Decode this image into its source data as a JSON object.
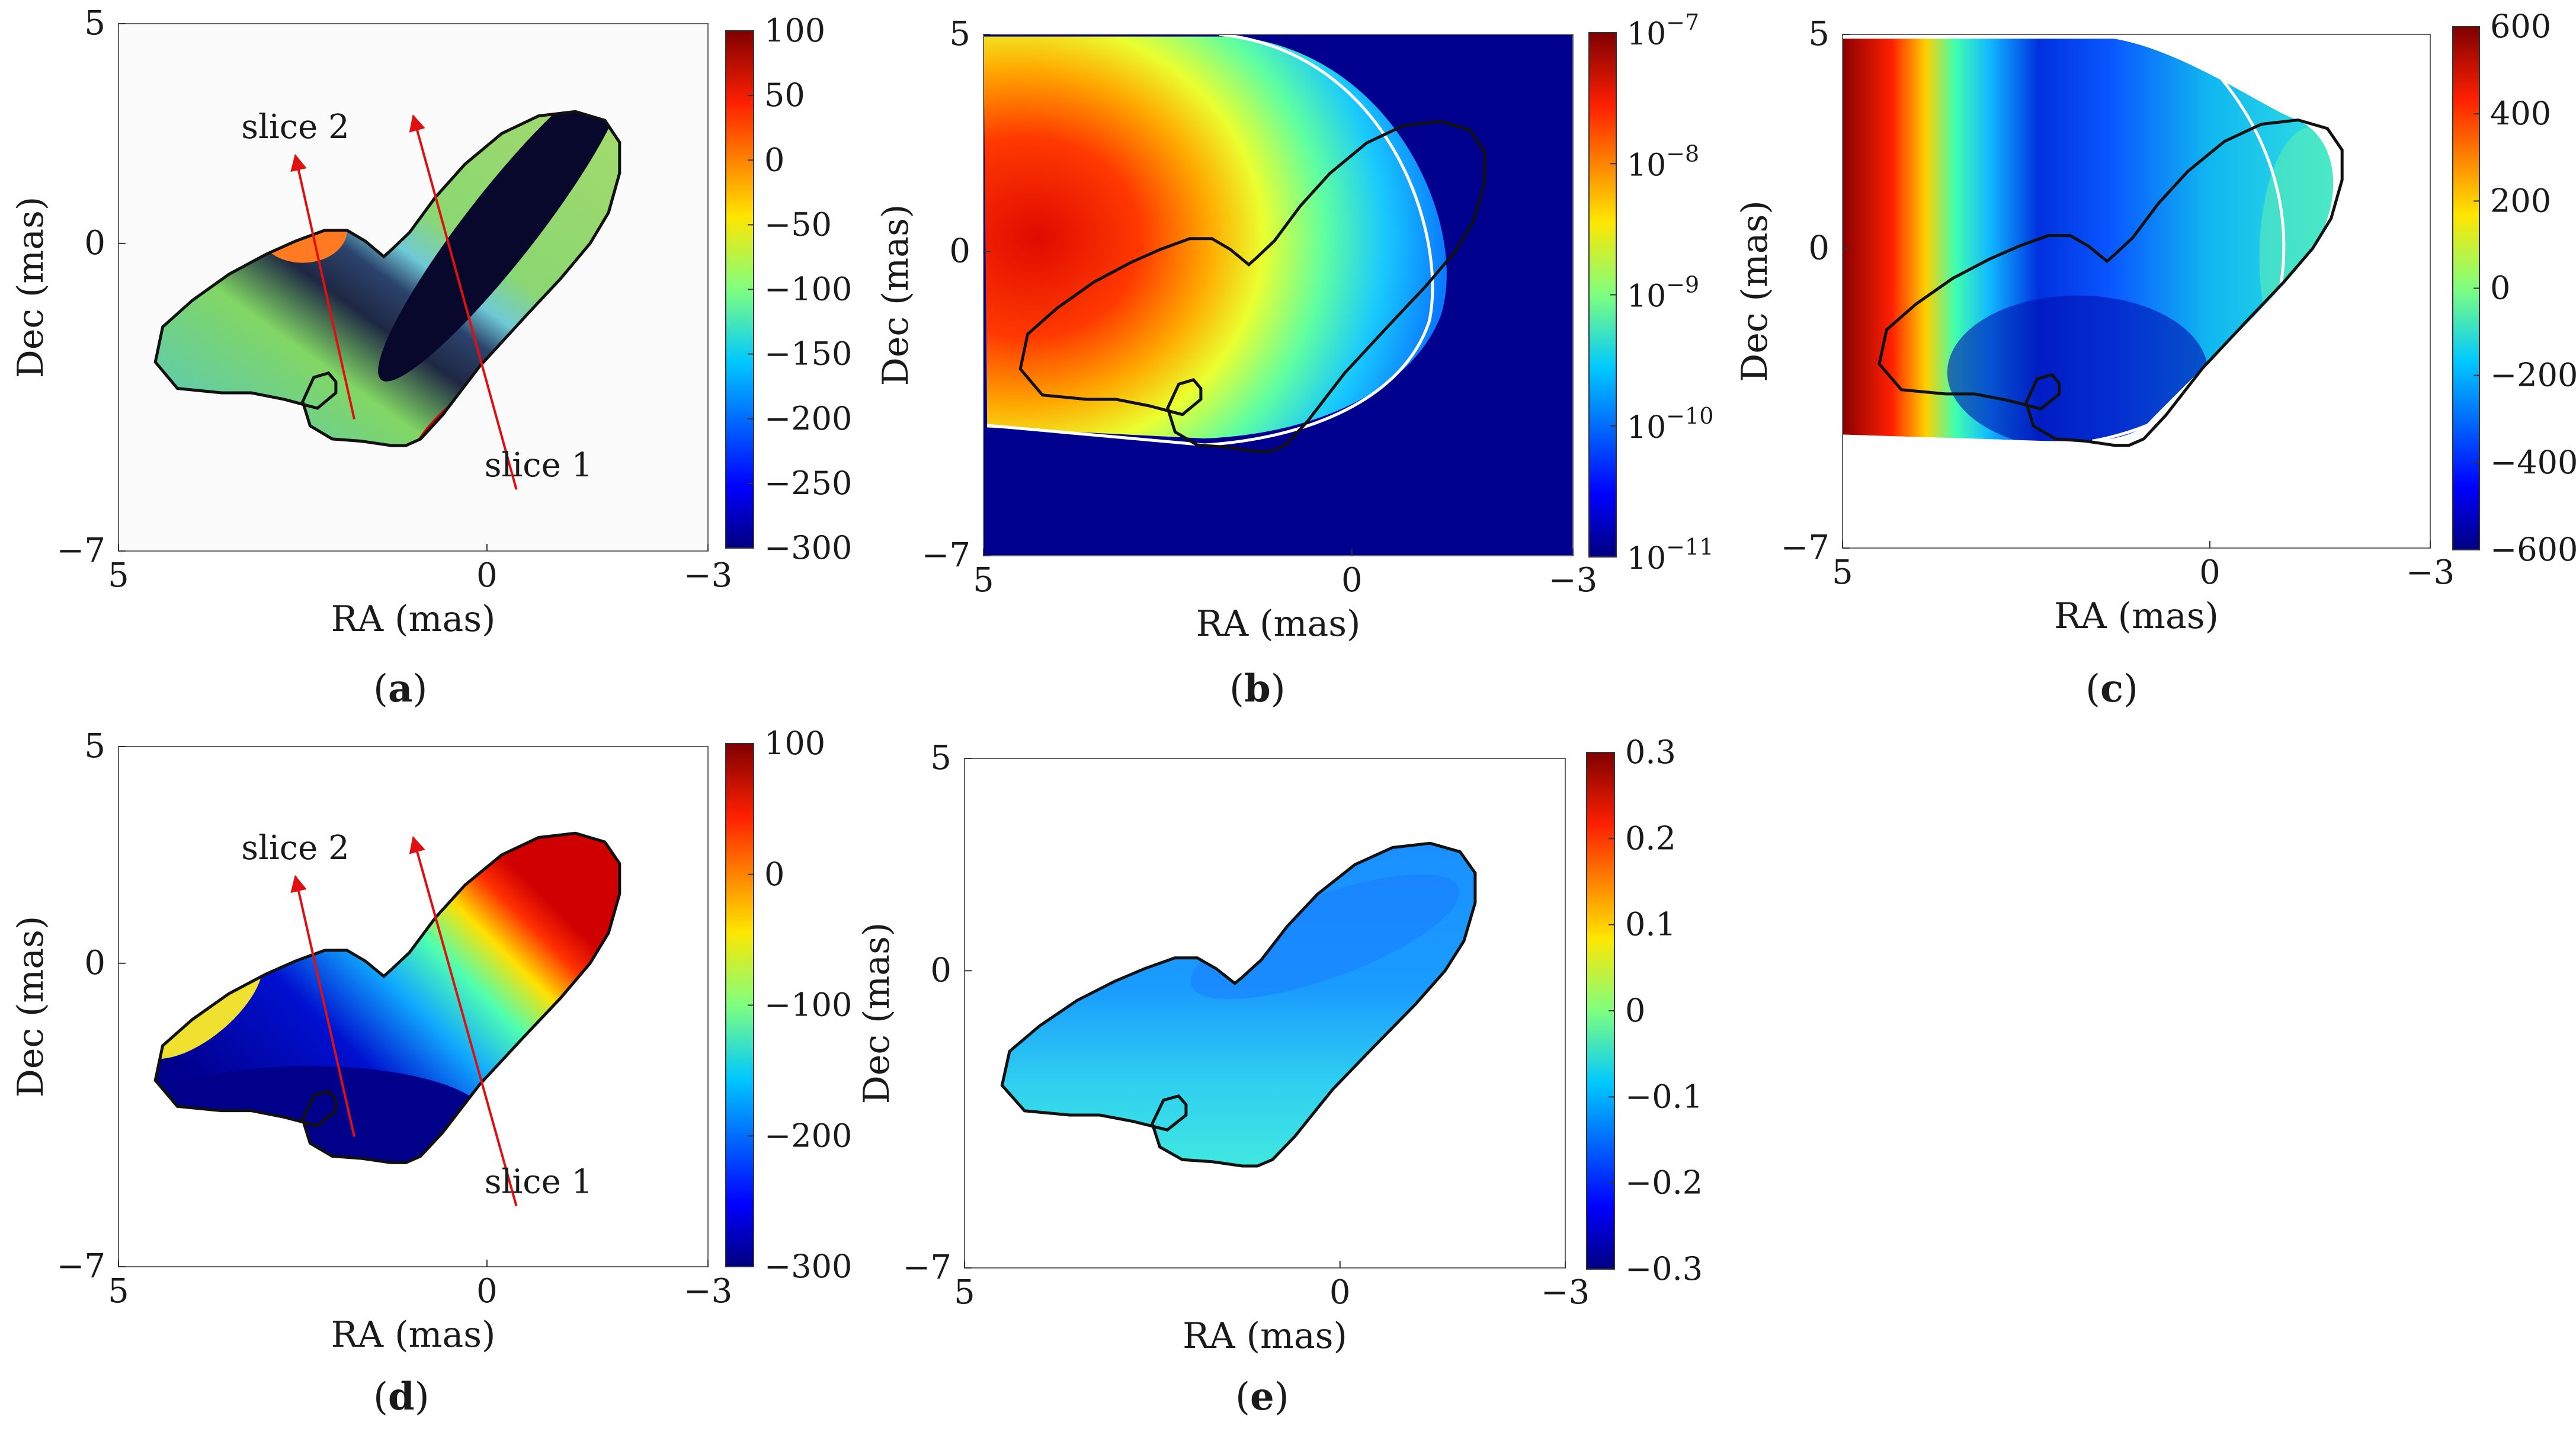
{
  "figure": {
    "caption_open": "(",
    "caption_close": ")"
  },
  "chart_data": [
    {
      "id": "a",
      "type": "heatmap",
      "caption": "a",
      "xlabel": "RA (mas)",
      "ylabel": "Dec (mas)",
      "xlim": [
        5,
        -3
      ],
      "ylim": [
        -7,
        5
      ],
      "xticks": [
        {
          "value": 5,
          "label": "5"
        },
        {
          "value": 0,
          "label": "0"
        },
        {
          "value": -3,
          "label": "−3"
        }
      ],
      "yticks": [
        {
          "value": 5,
          "label": "5"
        },
        {
          "value": 0,
          "label": "0"
        },
        {
          "value": -7,
          "label": "−7"
        }
      ],
      "colorbar": {
        "scale": "linear",
        "range": [
          -300,
          100
        ],
        "ticks": [
          {
            "value": 100,
            "label": "100"
          },
          {
            "value": 50,
            "label": "50"
          },
          {
            "value": 0,
            "label": "0"
          },
          {
            "value": -50,
            "label": "−50"
          },
          {
            "value": -100,
            "label": "−100"
          },
          {
            "value": -150,
            "label": "−150"
          },
          {
            "value": -200,
            "label": "−200"
          },
          {
            "value": -250,
            "label": "−250"
          },
          {
            "value": -300,
            "label": "−300"
          }
        ]
      },
      "annotations": [
        {
          "text": "slice 1",
          "from": [
            -0.4,
            -5.6
          ],
          "to": [
            1.0,
            2.9
          ]
        },
        {
          "text": "slice 2",
          "from": [
            1.8,
            -4.0
          ],
          "to": [
            2.6,
            2.0
          ]
        }
      ]
    },
    {
      "id": "b",
      "type": "heatmap",
      "caption": "b",
      "xlabel": "RA (mas)",
      "ylabel": "Dec (mas)",
      "xlim": [
        5,
        -3
      ],
      "ylim": [
        -7,
        5
      ],
      "xticks": [
        {
          "value": 5,
          "label": "5"
        },
        {
          "value": 0,
          "label": "0"
        },
        {
          "value": -3,
          "label": "−3"
        }
      ],
      "yticks": [
        {
          "value": 5,
          "label": "5"
        },
        {
          "value": 0,
          "label": "0"
        },
        {
          "value": -7,
          "label": "−7"
        }
      ],
      "colorbar": {
        "scale": "log",
        "range": [
          -11,
          -7
        ],
        "ticks": [
          {
            "value": -7,
            "base": "10",
            "exp": "−7"
          },
          {
            "value": -8,
            "base": "10",
            "exp": "−8"
          },
          {
            "value": -9,
            "base": "10",
            "exp": "−9"
          },
          {
            "value": -10,
            "base": "10",
            "exp": "−10"
          },
          {
            "value": -11,
            "base": "10",
            "exp": "−11"
          }
        ]
      }
    },
    {
      "id": "c",
      "type": "heatmap",
      "caption": "c",
      "xlabel": "RA (mas)",
      "ylabel": "Dec (mas)",
      "xlim": [
        5,
        -3
      ],
      "ylim": [
        -7,
        5
      ],
      "xticks": [
        {
          "value": 5,
          "label": "5"
        },
        {
          "value": 0,
          "label": "0"
        },
        {
          "value": -3,
          "label": "−3"
        }
      ],
      "yticks": [
        {
          "value": 5,
          "label": "5"
        },
        {
          "value": 0,
          "label": "0"
        },
        {
          "value": -7,
          "label": "−7"
        }
      ],
      "colorbar": {
        "scale": "linear",
        "range": [
          -600,
          600
        ],
        "ticks": [
          {
            "value": 600,
            "label": "600"
          },
          {
            "value": 400,
            "label": "400"
          },
          {
            "value": 200,
            "label": "200"
          },
          {
            "value": 0,
            "label": "0"
          },
          {
            "value": -200,
            "label": "−200"
          },
          {
            "value": -400,
            "label": "−400"
          },
          {
            "value": -600,
            "label": "−600"
          }
        ]
      }
    },
    {
      "id": "d",
      "type": "heatmap",
      "caption": "d",
      "xlabel": "RA (mas)",
      "ylabel": "Dec (mas)",
      "xlim": [
        5,
        -3
      ],
      "ylim": [
        -7,
        5
      ],
      "xticks": [
        {
          "value": 5,
          "label": "5"
        },
        {
          "value": 0,
          "label": "0"
        },
        {
          "value": -3,
          "label": "−3"
        }
      ],
      "yticks": [
        {
          "value": 5,
          "label": "5"
        },
        {
          "value": 0,
          "label": "0"
        },
        {
          "value": -7,
          "label": "−7"
        }
      ],
      "colorbar": {
        "scale": "linear",
        "range": [
          -300,
          100
        ],
        "ticks": [
          {
            "value": 100,
            "label": "100"
          },
          {
            "value": 0,
            "label": "0"
          },
          {
            "value": -100,
            "label": "−100"
          },
          {
            "value": -200,
            "label": "−200"
          },
          {
            "value": -300,
            "label": "−300"
          }
        ]
      },
      "annotations": [
        {
          "text": "slice 1",
          "from": [
            -0.4,
            -5.6
          ],
          "to": [
            1.0,
            2.9
          ]
        },
        {
          "text": "slice 2",
          "from": [
            1.8,
            -4.0
          ],
          "to": [
            2.6,
            2.0
          ]
        }
      ]
    },
    {
      "id": "e",
      "type": "heatmap",
      "caption": "e",
      "xlabel": "RA (mas)",
      "ylabel": "Dec (mas)",
      "xlim": [
        5,
        -3
      ],
      "ylim": [
        -7,
        5
      ],
      "xticks": [
        {
          "value": 5,
          "label": "5"
        },
        {
          "value": 0,
          "label": "0"
        },
        {
          "value": -3,
          "label": "−3"
        }
      ],
      "yticks": [
        {
          "value": 5,
          "label": "5"
        },
        {
          "value": 0,
          "label": "0"
        },
        {
          "value": -7,
          "label": "−7"
        }
      ],
      "colorbar": {
        "scale": "linear",
        "range": [
          -0.3,
          0.3
        ],
        "ticks": [
          {
            "value": 0.3,
            "label": "0.3"
          },
          {
            "value": 0.2,
            "label": "0.2"
          },
          {
            "value": 0.1,
            "label": "0.1"
          },
          {
            "value": 0,
            "label": "0"
          },
          {
            "value": -0.1,
            "label": "−0.1"
          },
          {
            "value": -0.2,
            "label": "−0.2"
          },
          {
            "value": -0.3,
            "label": "−0.3"
          }
        ]
      }
    }
  ]
}
